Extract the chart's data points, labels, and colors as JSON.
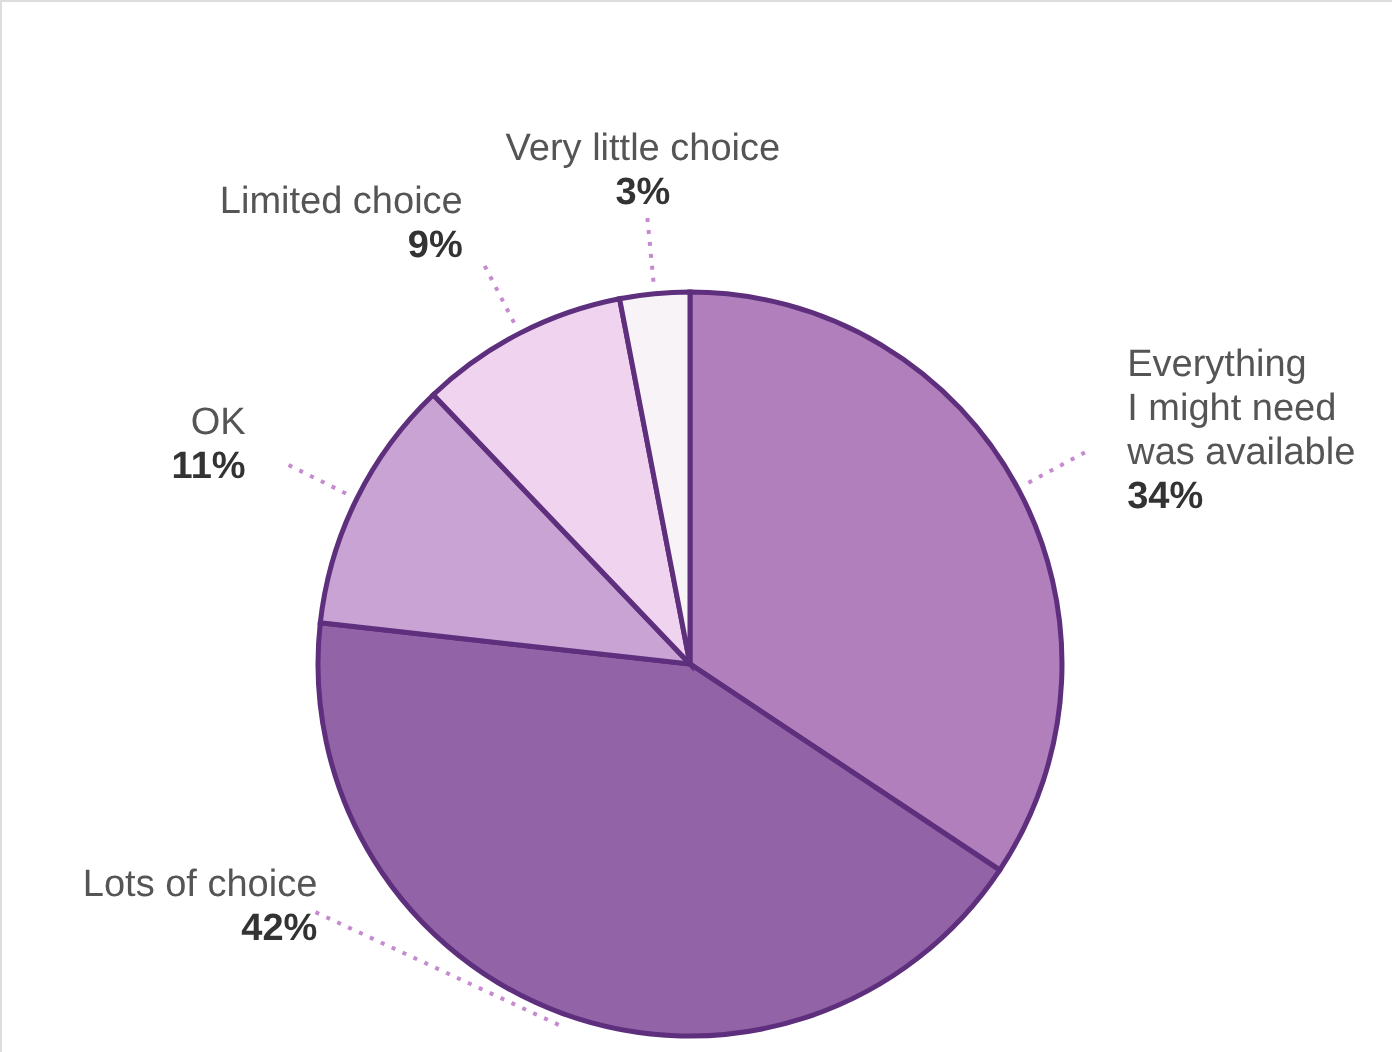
{
  "chart_data": {
    "type": "pie",
    "categories": [
      "Everything\nI might need\nwas available",
      "Lots of choice",
      "OK",
      "Limited choice",
      "Very little choice"
    ],
    "values": [
      34,
      42,
      11,
      9,
      3
    ],
    "colors": [
      "#b07fbc",
      "#9363a8",
      "#c9a3d3",
      "#f0d3ee",
      "#f7f3f7"
    ],
    "value_labels": [
      "34%",
      "42%",
      "11%",
      "9%",
      "3%"
    ]
  }
}
